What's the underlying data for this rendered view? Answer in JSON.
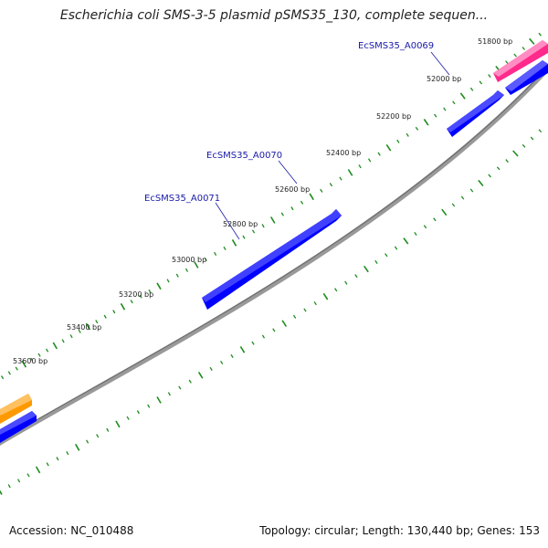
{
  "title": "Escherichia coli SMS-3-5 plasmid pSMS35_130, complete sequen...",
  "footer": {
    "accession": "Accession: NC_010488",
    "summary": "Topology: circular; Length: 130,440 bp; Genes: 153"
  },
  "colors": {
    "backbone": "#808080",
    "tick": "#1e8c1e",
    "gene_forward": "#0000ff",
    "gene_pink": "#ff2a8c",
    "gene_orange": "#ff9900",
    "label_text": "#1a1aa8"
  },
  "scale_labels": [
    {
      "pos": 51800,
      "text": "51800 bp"
    },
    {
      "pos": 52000,
      "text": "52000 bp"
    },
    {
      "pos": 52200,
      "text": "52200 bp"
    },
    {
      "pos": 52400,
      "text": "52400 bp"
    },
    {
      "pos": 52600,
      "text": "52600 bp"
    },
    {
      "pos": 52800,
      "text": "52800 bp"
    },
    {
      "pos": 53000,
      "text": "53000 bp"
    },
    {
      "pos": 53200,
      "text": "53200 bp"
    },
    {
      "pos": 53400,
      "text": "53400 bp"
    },
    {
      "pos": 53600,
      "text": "53600 bp"
    }
  ],
  "gene_labels": [
    {
      "name": "EcSMS35_A0069"
    },
    {
      "name": "EcSMS35_A0070"
    },
    {
      "name": "EcSMS35_A0071"
    }
  ]
}
